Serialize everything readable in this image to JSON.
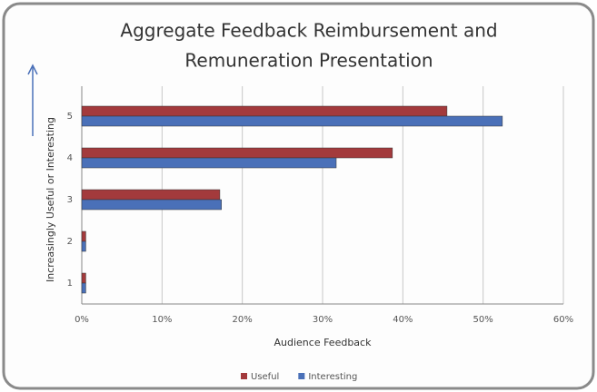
{
  "chart_data": {
    "type": "hbar",
    "title": [
      "Aggregate Feedback Reimbursement and",
      "Remuneration Presentation"
    ],
    "xlabel": "Audience Feedback",
    "ylabel": "Increasingly Useful or Interesting",
    "categories": [
      "1",
      "2",
      "3",
      "4",
      "5"
    ],
    "series": [
      {
        "name": "Useful",
        "color": "#a33a3c",
        "values": [
          0.5,
          0.5,
          17.2,
          38.7,
          45.5
        ]
      },
      {
        "name": "Interesting",
        "color": "#4a70b8",
        "values": [
          0.5,
          0.5,
          17.4,
          31.7,
          52.4
        ]
      }
    ],
    "xlim": [
      0,
      60
    ],
    "xticks": [
      {
        "value": 0,
        "label": "0%"
      },
      {
        "value": 10,
        "label": "10%"
      },
      {
        "value": 20,
        "label": "20%"
      },
      {
        "value": 30,
        "label": "30%"
      },
      {
        "value": 40,
        "label": "40%"
      },
      {
        "value": 50,
        "label": "50%"
      },
      {
        "value": 60,
        "label": "60%"
      }
    ],
    "grid": true,
    "legend": "bottom"
  }
}
